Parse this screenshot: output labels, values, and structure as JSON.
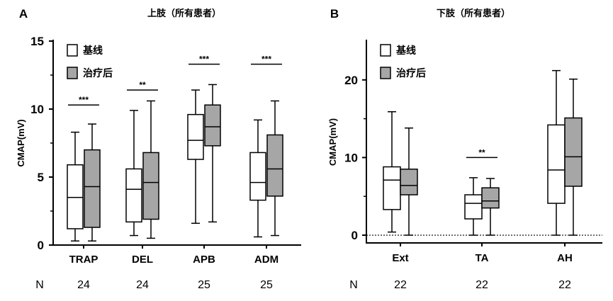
{
  "chart_data": [
    {
      "type": "boxplot",
      "panel_label": "A",
      "title": "上肢（所有患者）",
      "ylabel": "CMAP(mV)",
      "ylim": [
        0,
        15
      ],
      "yticks": [
        0,
        5,
        10,
        15
      ],
      "y_tick_labels": [
        "0",
        "5",
        "10",
        "15"
      ],
      "categories": [
        "TRAP",
        "DEL",
        "APB",
        "ADM"
      ],
      "n_label": "N",
      "n_values": [
        "24",
        "24",
        "25",
        "25"
      ],
      "legend": {
        "placement": "top-left",
        "entries": [
          "基线",
          "治疗后"
        ]
      },
      "series": [
        {
          "name": "基线",
          "color": "#ffffff",
          "boxes": [
            {
              "min": 0.3,
              "q1": 1.2,
              "median": 3.5,
              "q3": 5.9,
              "max": 8.3
            },
            {
              "min": 0.7,
              "q1": 1.7,
              "median": 4.1,
              "q3": 5.6,
              "max": 9.9
            },
            {
              "min": 1.6,
              "q1": 6.3,
              "median": 7.7,
              "q3": 9.6,
              "max": 11.4
            },
            {
              "min": 0.6,
              "q1": 3.3,
              "median": 4.6,
              "q3": 6.8,
              "max": 9.2
            }
          ]
        },
        {
          "name": "治疗后",
          "color": "#a6a6a6",
          "boxes": [
            {
              "min": 0.3,
              "q1": 1.3,
              "median": 4.3,
              "q3": 7.0,
              "max": 8.9
            },
            {
              "min": 0.5,
              "q1": 1.9,
              "median": 4.6,
              "q3": 6.8,
              "max": 10.6
            },
            {
              "min": 1.7,
              "q1": 7.3,
              "median": 8.7,
              "q3": 10.3,
              "max": 11.8
            },
            {
              "min": 0.7,
              "q1": 3.6,
              "median": 5.6,
              "q3": 8.1,
              "max": 10.6
            }
          ]
        }
      ],
      "significance": [
        {
          "category": "TRAP",
          "label": "***",
          "y": 10.3
        },
        {
          "category": "DEL",
          "label": "**",
          "y": 11.4
        },
        {
          "category": "APB",
          "label": "***",
          "y": 13.3
        },
        {
          "category": "ADM",
          "label": "***",
          "y": 13.3
        }
      ]
    },
    {
      "type": "boxplot",
      "panel_label": "B",
      "title": "下肢（所有患者）",
      "ylabel": "CMAP(mV)",
      "ylim": [
        -1,
        25
      ],
      "yticks": [
        0,
        10,
        20
      ],
      "y_tick_labels": [
        "0",
        "10",
        "20"
      ],
      "reference_line": 0,
      "categories": [
        "Ext",
        "TA",
        "AH"
      ],
      "n_label": "N",
      "n_values": [
        "22",
        "22",
        "22"
      ],
      "legend": {
        "placement": "top-left",
        "entries": [
          "基线",
          "治疗后"
        ]
      },
      "series": [
        {
          "name": "基线",
          "color": "#ffffff",
          "boxes": [
            {
              "min": 0.4,
              "q1": 3.3,
              "median": 7.1,
              "q3": 8.8,
              "max": 15.9
            },
            {
              "min": 0.0,
              "q1": 2.1,
              "median": 4.1,
              "q3": 5.2,
              "max": 7.4
            },
            {
              "min": 0.0,
              "q1": 4.1,
              "median": 8.4,
              "q3": 14.2,
              "max": 21.2
            }
          ]
        },
        {
          "name": "治疗后",
          "color": "#a6a6a6",
          "boxes": [
            {
              "min": 0.0,
              "q1": 5.2,
              "median": 6.4,
              "q3": 8.5,
              "max": 13.8
            },
            {
              "min": 0.0,
              "q1": 3.5,
              "median": 4.4,
              "q3": 6.1,
              "max": 7.3
            },
            {
              "min": 0.0,
              "q1": 6.3,
              "median": 10.1,
              "q3": 15.1,
              "max": 20.1
            }
          ]
        }
      ],
      "significance": [
        {
          "category": "TA",
          "label": "**",
          "y": 10.0
        }
      ]
    }
  ]
}
